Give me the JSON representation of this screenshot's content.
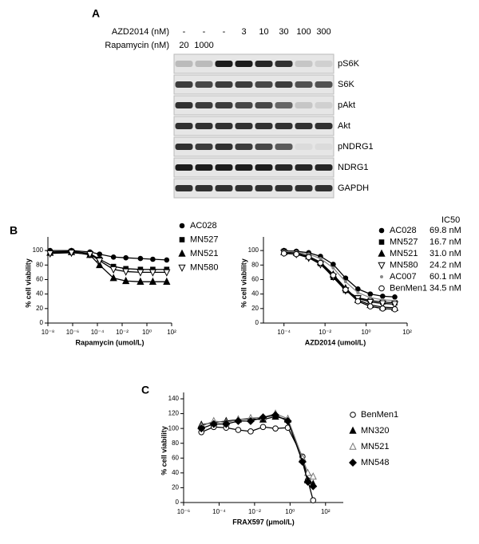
{
  "panel_a": {
    "label": "A",
    "rows": [
      {
        "header": "AZD2014 (nM)",
        "lanes": [
          "-",
          "-",
          "-",
          "3",
          "10",
          "30",
          "100",
          "300"
        ]
      },
      {
        "header": "Rapamycin (nM)",
        "lanes": [
          "20",
          "1000"
        ]
      }
    ],
    "blots": [
      "pS6K",
      "S6K",
      "pAkt",
      "Akt",
      "pNDRG1",
      "NDRG1",
      "GAPDH"
    ]
  },
  "chart_data": [
    {
      "type": "line",
      "panel_label": "B",
      "xlabel": "Rapamycin (umol/L)",
      "ylabel": "% cell viability",
      "xscale": "log",
      "xlim": [
        1e-08,
        100
      ],
      "xticks": [
        {
          "value": 1e-08,
          "label": "10⁻⁸"
        },
        {
          "value": 1e-06,
          "label": "10⁻⁶"
        },
        {
          "value": 0.0001,
          "label": "10⁻⁴"
        },
        {
          "value": 0.01,
          "label": "10⁻²"
        },
        {
          "value": 1,
          "label": "10⁰"
        },
        {
          "value": 100,
          "label": "10²"
        }
      ],
      "ylim": [
        0,
        110
      ],
      "yticks": [
        0,
        20,
        40,
        60,
        80,
        100
      ],
      "x": [
        1.5e-08,
        8e-07,
        2.5e-05,
        0.00015,
        0.002,
        0.02,
        0.3,
        3,
        40
      ],
      "series": [
        {
          "name": "AC028",
          "marker": "circle",
          "color": "#000000",
          "values": [
            100,
            100,
            98,
            95,
            91,
            90,
            89,
            88,
            87
          ]
        },
        {
          "name": "MN527",
          "marker": "square",
          "color": "#000000",
          "values": [
            98,
            99,
            96,
            88,
            78,
            75,
            74,
            74,
            74
          ]
        },
        {
          "name": "MN521",
          "marker": "triangle",
          "color": "#000000",
          "values": [
            97,
            98,
            94,
            80,
            62,
            58,
            57,
            57,
            57
          ]
        },
        {
          "name": "MN580",
          "marker": "triangle-down",
          "color": "#000000",
          "values": [
            96,
            97,
            95,
            86,
            74,
            71,
            70,
            70,
            70
          ]
        }
      ]
    },
    {
      "type": "line",
      "xlabel": "AZD2014 (umol/L)",
      "ylabel": "% cell viability",
      "xscale": "log",
      "legend_title": "IC50",
      "xlim": [
        1e-05,
        100
      ],
      "xticks": [
        {
          "value": 0.0001,
          "label": "10⁻⁴"
        },
        {
          "value": 0.01,
          "label": "10⁻²"
        },
        {
          "value": 1,
          "label": "10⁰"
        },
        {
          "value": 100,
          "label": "10²"
        }
      ],
      "ylim": [
        0,
        110
      ],
      "yticks": [
        0,
        20,
        40,
        60,
        80,
        100
      ],
      "x": [
        0.0001,
        0.0004,
        0.0016,
        0.006,
        0.025,
        0.1,
        0.4,
        1.6,
        6.4,
        25
      ],
      "series": [
        {
          "name": "AC028",
          "ic50_label": "69.8 nM",
          "marker": "circle",
          "color": "#000000",
          "values": [
            100,
            99,
            97,
            92,
            81,
            62,
            47,
            40,
            37,
            36
          ]
        },
        {
          "name": "MN527",
          "ic50_label": "16.7 nM",
          "marker": "square",
          "color": "#000000",
          "values": [
            99,
            97,
            92,
            82,
            63,
            45,
            35,
            31,
            29,
            28
          ]
        },
        {
          "name": "MN521",
          "ic50_label": "31.0 nM",
          "marker": "triangle",
          "color": "#000000",
          "values": [
            98,
            97,
            92,
            84,
            67,
            48,
            32,
            25,
            22,
            21
          ]
        },
        {
          "name": "MN580",
          "ic50_label": "24.2 nM",
          "marker": "triangle-down",
          "color": "#000000",
          "values": [
            97,
            95,
            90,
            81,
            64,
            45,
            34,
            29,
            27,
            26
          ]
        },
        {
          "name": "AC007",
          "ic50_label": "60.1 nM",
          "marker": "dot",
          "color": "#888888",
          "values": [
            99,
            98,
            95,
            89,
            76,
            57,
            42,
            35,
            32,
            31
          ]
        },
        {
          "name": "BenMen1",
          "ic50_label": "34.5 nM",
          "marker": "circle-open",
          "color": "#000000",
          "values": [
            96,
            95,
            91,
            83,
            66,
            46,
            30,
            23,
            20,
            19
          ]
        }
      ]
    },
    {
      "type": "line",
      "panel_label": "C",
      "xlabel": "FRAX597 (μmol/L)",
      "ylabel": "% cell viability",
      "xscale": "log",
      "xlim": [
        1e-06,
        1000
      ],
      "xticks": [
        {
          "value": 1e-06,
          "label": "10⁻⁶"
        },
        {
          "value": 0.0001,
          "label": "10⁻⁴"
        },
        {
          "value": 0.01,
          "label": "10⁻²"
        },
        {
          "value": 1,
          "label": "10⁰"
        },
        {
          "value": 100,
          "label": "10²"
        }
      ],
      "ylim": [
        0,
        140
      ],
      "yticks": [
        0,
        20,
        40,
        60,
        80,
        100,
        120,
        140
      ],
      "x": [
        1e-05,
        5e-05,
        0.00025,
        0.0012,
        0.006,
        0.03,
        0.15,
        0.75,
        5,
        10,
        20
      ],
      "series": [
        {
          "name": "BenMen1",
          "marker": "circle-open",
          "color": "#000000",
          "values": [
            95,
            102,
            101,
            98,
            96,
            102,
            100,
            101,
            62,
            30,
            3
          ]
        },
        {
          "name": "MN320",
          "marker": "triangle",
          "color": "#000000",
          "values": [
            105,
            108,
            110,
            112,
            113,
            112,
            116,
            112,
            58,
            30,
            25
          ]
        },
        {
          "name": "MN521",
          "marker": "triangle-open",
          "color": "#777777",
          "values": [
            103,
            110,
            108,
            112,
            114,
            115,
            120,
            113,
            60,
            40,
            35
          ]
        },
        {
          "name": "MN548",
          "marker": "diamond",
          "color": "#000000",
          "values": [
            100,
            106,
            106,
            110,
            110,
            115,
            118,
            110,
            55,
            28,
            22
          ]
        }
      ]
    }
  ]
}
